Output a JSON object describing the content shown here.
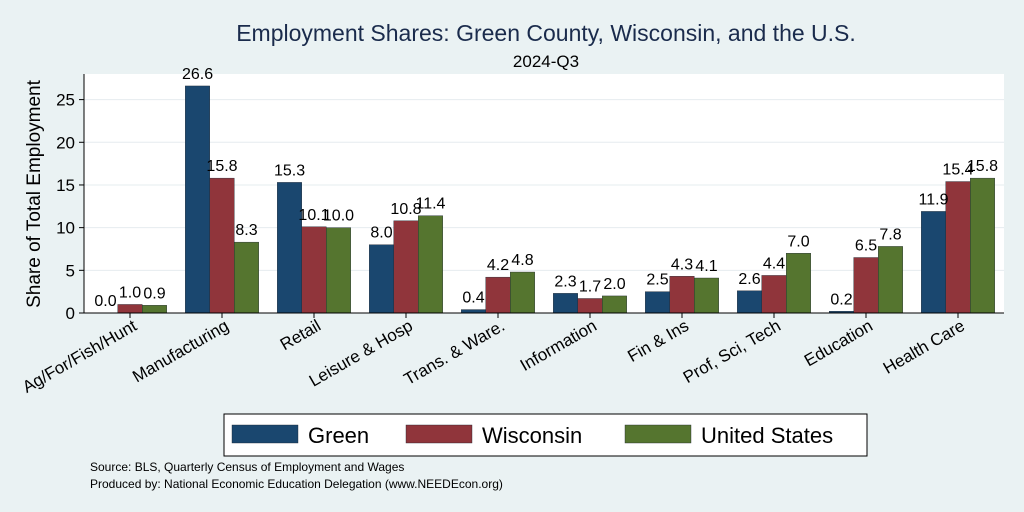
{
  "chart_data": {
    "type": "bar",
    "title": "Employment Shares: Green County, Wisconsin, and the U.S.",
    "subtitle": "2024-Q3",
    "ylabel": "Share of Total Employment",
    "ylim": [
      0,
      28
    ],
    "yticks": [
      0,
      5,
      10,
      15,
      20,
      25
    ],
    "grid": true,
    "legend_position": "bottom",
    "categories": [
      "Ag/For/Fish/Hunt",
      "Manufacturing",
      "Retail",
      "Leisure & Hosp",
      "Trans. & Ware.",
      "Information",
      "Fin & Ins",
      "Prof, Sci, Tech",
      "Education",
      "Health Care"
    ],
    "series": [
      {
        "name": "Green",
        "color": "#1a476f",
        "values": [
          0.0,
          26.6,
          15.3,
          8.0,
          0.4,
          2.3,
          2.5,
          2.6,
          0.2,
          11.9
        ],
        "labels": [
          "0.0",
          "26.6",
          "15.3",
          "8.0",
          "0.4",
          "2.3",
          "2.5",
          "2.6",
          "0.2",
          "11.9"
        ]
      },
      {
        "name": "Wisconsin",
        "color": "#90353b",
        "values": [
          1.0,
          15.8,
          10.1,
          10.8,
          4.2,
          1.7,
          4.3,
          4.4,
          6.5,
          15.4
        ],
        "labels": [
          "1.0",
          "15.8",
          "10.1",
          "10.8",
          "4.2",
          "1.7",
          "4.3",
          "4.4",
          "6.5",
          "15.4"
        ]
      },
      {
        "name": "United States",
        "color": "#55752f",
        "values": [
          0.9,
          8.3,
          10.0,
          11.4,
          4.8,
          2.0,
          4.1,
          7.0,
          7.8,
          15.8
        ],
        "labels": [
          "0.9",
          "8.3",
          "10.0",
          "11.4",
          "4.8",
          "2.0",
          "4.1",
          "7.0",
          "7.8",
          "15.8"
        ]
      }
    ],
    "notes": [
      "Source: BLS, Quarterly Census of Employment and Wages",
      "Produced by: National Economic Education Delegation (www.NEEDEcon.org)"
    ]
  }
}
